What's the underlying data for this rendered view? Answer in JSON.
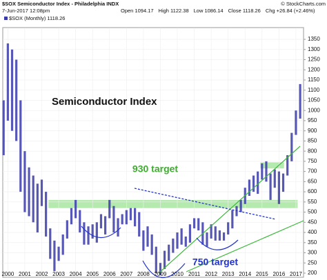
{
  "chart_data": {
    "type": "hlbar",
    "title": "$SOX Semiconductor Index - Philadelphia INDX",
    "credit": "© StockCharts.com",
    "date": "7-Jun-2017 12:08pm",
    "quote": [
      "Open 1094.17",
      "High 1122.38",
      "Low 1086.14",
      "Close 1118.26",
      "Chg +26.84 (+2.46%)"
    ],
    "legend_label": "$SOX (Monthly) 1118.26",
    "annotations": [
      "Semiconductor Index",
      "930 target",
      "750 target"
    ],
    "x": [
      1999.75,
      2000,
      2000.25,
      2000.5,
      2000.75,
      2001,
      2001.25,
      2001.5,
      2001.75,
      2002,
      2002.25,
      2002.5,
      2002.75,
      2003,
      2003.25,
      2003.5,
      2003.75,
      2004,
      2004.25,
      2004.5,
      2004.75,
      2005,
      2005.25,
      2005.5,
      2005.75,
      2006,
      2006.25,
      2006.5,
      2006.75,
      2007,
      2007.25,
      2007.5,
      2007.75,
      2008,
      2008.25,
      2008.5,
      2008.75,
      2009,
      2009.25,
      2009.5,
      2009.75,
      2010,
      2010.25,
      2010.5,
      2010.75,
      2011,
      2011.25,
      2011.5,
      2011.75,
      2012,
      2012.25,
      2012.5,
      2012.75,
      2013,
      2013.25,
      2013.5,
      2013.75,
      2014,
      2014.25,
      2014.5,
      2014.75,
      2015,
      2015.25,
      2015.5,
      2015.75,
      2016,
      2016.25,
      2016.5,
      2016.75,
      2017,
      2017.25
    ],
    "series": [
      {
        "name": "$SOX (Monthly)",
        "color": "#3a3aa8",
        "high": [
          1050,
          1330,
          1300,
          1250,
          1050,
          800,
          720,
          680,
          640,
          660,
          600,
          420,
          360,
          330,
          390,
          460,
          520,
          560,
          510,
          450,
          430,
          440,
          450,
          490,
          480,
          560,
          530,
          470,
          490,
          510,
          520,
          520,
          500,
          410,
          430,
          390,
          330,
          250,
          310,
          340,
          370,
          400,
          420,
          380,
          440,
          470,
          470,
          450,
          400,
          440,
          430,
          410,
          400,
          450,
          510,
          530,
          560,
          620,
          660,
          680,
          700,
          740,
          750,
          690,
          710,
          700,
          690,
          780,
          890,
          1000,
          1130
        ],
        "low": [
          780,
          950,
          900,
          850,
          600,
          500,
          480,
          450,
          400,
          530,
          380,
          270,
          210,
          260,
          290,
          370,
          440,
          470,
          400,
          340,
          340,
          370,
          350,
          420,
          390,
          470,
          400,
          380,
          440,
          440,
          460,
          430,
          380,
          310,
          330,
          290,
          200,
          190,
          220,
          260,
          300,
          320,
          340,
          330,
          350,
          420,
          410,
          340,
          330,
          370,
          360,
          360,
          360,
          390,
          420,
          480,
          500,
          540,
          580,
          600,
          590,
          660,
          650,
          560,
          620,
          540,
          600,
          680,
          750,
          880,
          960
        ]
      }
    ],
    "zones": [
      {
        "y": [
          520,
          560
        ],
        "x": [
          2002.4,
          2017.1
        ],
        "color": "#a8e6a0"
      },
      {
        "y": [
          715,
          745
        ],
        "x": [
          2014.9,
          2016.3
        ],
        "color": "#a8e6a0"
      }
    ],
    "xlim": [
      1999.7,
      2017.45
    ],
    "xticks": [
      2000,
      2001,
      2002,
      2003,
      2004,
      2005,
      2006,
      2007,
      2008,
      2009,
      2010,
      2011,
      2012,
      2013,
      2014,
      2015,
      2016,
      2017
    ],
    "ylim": [
      180,
      1380
    ],
    "yticks": [
      200,
      250,
      300,
      350,
      400,
      450,
      500,
      550,
      600,
      650,
      700,
      750,
      800,
      850,
      900,
      950,
      1000,
      1050,
      1100,
      1150,
      1200,
      1250,
      1300,
      1350
    ],
    "grid": true
  }
}
